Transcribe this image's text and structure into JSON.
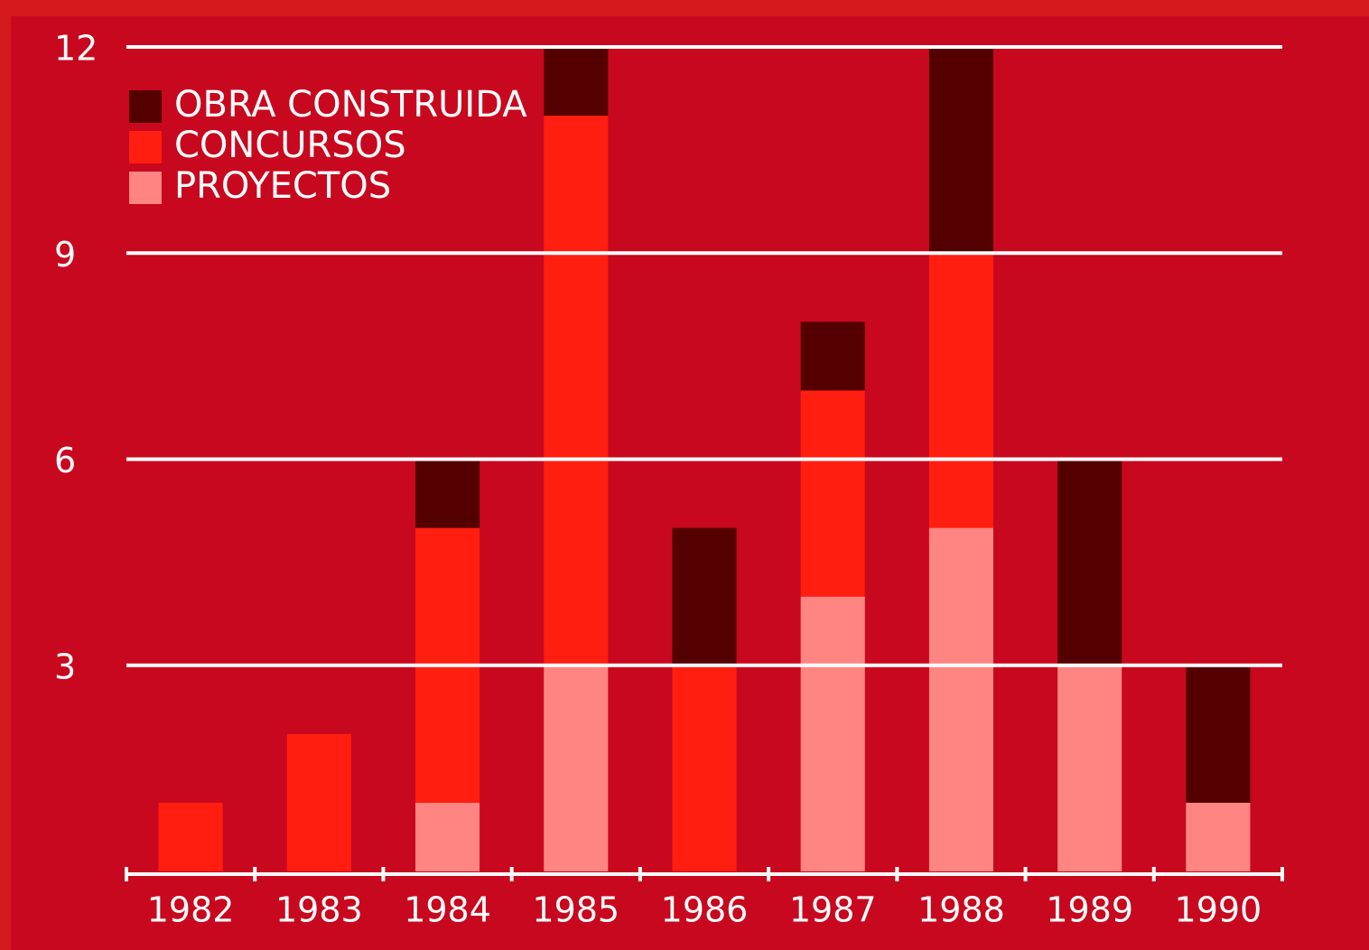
{
  "chart_data": {
    "type": "stacked_bar",
    "categories": [
      "1982",
      "1983",
      "1984",
      "1985",
      "1986",
      "1987",
      "1988",
      "1989",
      "1990"
    ],
    "series": [
      {
        "name": "PROYECTOS",
        "color": "#ff8582",
        "values": [
          0,
          0,
          1,
          3,
          0,
          4,
          5,
          3,
          1
        ]
      },
      {
        "name": "CONCURSOS",
        "color": "#ff1e10",
        "values": [
          1,
          2,
          4,
          8,
          3,
          3,
          4,
          0,
          0
        ]
      },
      {
        "name": "OBRA CONSTRUIDA",
        "color": "#540000",
        "values": [
          0,
          0,
          1,
          1,
          2,
          1,
          3,
          3,
          2
        ]
      }
    ],
    "ylim": [
      0,
      12
    ],
    "yticks": [
      3,
      6,
      9,
      12
    ],
    "grid": true,
    "legend": "upper left"
  }
}
